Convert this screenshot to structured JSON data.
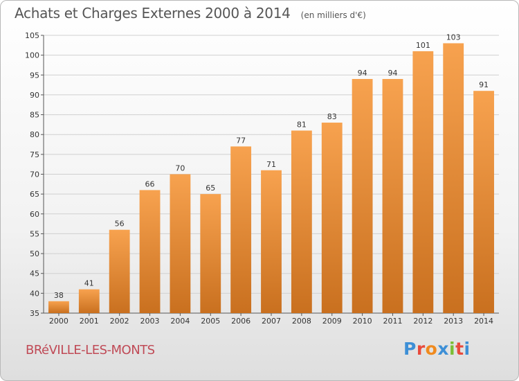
{
  "title": "Achats et Charges Externes 2000 à 2014",
  "unit": "(en milliers d'€)",
  "city": "BRéVILLE-LES-MONTS",
  "logo": {
    "letters": [
      "P",
      "r",
      "o",
      "x",
      "i",
      "t",
      "i"
    ],
    "colors": [
      "#3d8fd6",
      "#e84a3c",
      "#f08a1e",
      "#3d8fd6",
      "#7bbd35",
      "#e84a3c",
      "#3d8fd6"
    ]
  },
  "colors": {
    "bar_light": "#f7a24f",
    "bar_dark": "#c9701f",
    "grid": "#d0d0d0"
  },
  "chart_data": {
    "type": "bar",
    "categories": [
      "2000",
      "2001",
      "2002",
      "2003",
      "2004",
      "2005",
      "2006",
      "2007",
      "2008",
      "2009",
      "2010",
      "2011",
      "2012",
      "2013",
      "2014"
    ],
    "values": [
      38,
      41,
      56,
      66,
      70,
      65,
      77,
      71,
      81,
      83,
      94,
      94,
      101,
      103,
      91
    ],
    "ylim": [
      35,
      105
    ],
    "yticks": [
      35,
      40,
      45,
      50,
      55,
      60,
      65,
      70,
      75,
      80,
      85,
      90,
      95,
      100,
      105
    ],
    "grid": true,
    "data_labels": true
  }
}
